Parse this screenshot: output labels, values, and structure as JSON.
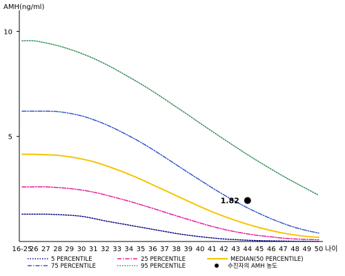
{
  "chart_data": {
    "type": "line",
    "title": "",
    "ylabel": "AMH(ng/ml)",
    "xlabel": "나이",
    "x": [
      16,
      26,
      27,
      28,
      29,
      30,
      31,
      32,
      33,
      34,
      35,
      36,
      37,
      38,
      39,
      40,
      41,
      42,
      43,
      44,
      45,
      46,
      47,
      48,
      49,
      50
    ],
    "x_tick_labels": [
      "16-25",
      "26",
      "27",
      "28",
      "29",
      "30",
      "31",
      "32",
      "33",
      "34",
      "35",
      "36",
      "37",
      "38",
      "39",
      "40",
      "41",
      "42",
      "43",
      "44",
      "45",
      "46",
      "47",
      "48",
      "49",
      "50"
    ],
    "y_ticks": [
      5,
      10
    ],
    "ylim": [
      0,
      11
    ],
    "grid": false,
    "legend_position": "bottom",
    "series": [
      {
        "name": "5 PERCENTILE",
        "color": "#000080",
        "style": "dotted",
        "values": [
          1.3,
          1.3,
          1.3,
          1.28,
          1.25,
          1.2,
          1.1,
          0.98,
          0.88,
          0.78,
          0.68,
          0.58,
          0.48,
          0.38,
          0.3,
          0.23,
          0.17,
          0.12,
          0.09,
          0.06,
          0.04,
          0.03,
          0.02,
          0.01,
          0.01,
          0.0
        ]
      },
      {
        "name": "25 PERCENTILE",
        "color": "#e6199a",
        "style": "dashdot",
        "values": [
          2.6,
          2.6,
          2.6,
          2.57,
          2.52,
          2.45,
          2.35,
          2.22,
          2.07,
          1.92,
          1.75,
          1.58,
          1.4,
          1.22,
          1.05,
          0.88,
          0.72,
          0.58,
          0.46,
          0.36,
          0.28,
          0.22,
          0.16,
          0.12,
          0.1,
          0.08
        ]
      },
      {
        "name": "MEDIAN(50 PERCENTILE)",
        "color": "#f5c400",
        "style": "solid",
        "values": [
          4.15,
          4.15,
          4.13,
          4.1,
          4.03,
          3.93,
          3.8,
          3.62,
          3.42,
          3.2,
          2.96,
          2.7,
          2.44,
          2.18,
          1.92,
          1.66,
          1.42,
          1.2,
          1.0,
          0.82,
          0.66,
          0.52,
          0.4,
          0.31,
          0.24,
          0.2
        ]
      },
      {
        "name": "75 PERCENTILE",
        "color": "#3355cc",
        "style": "dashdot",
        "values": [
          6.2,
          6.2,
          6.2,
          6.18,
          6.1,
          5.98,
          5.8,
          5.58,
          5.32,
          5.03,
          4.72,
          4.38,
          4.02,
          3.65,
          3.28,
          2.92,
          2.56,
          2.22,
          1.9,
          1.6,
          1.33,
          1.08,
          0.86,
          0.67,
          0.52,
          0.4
        ]
      },
      {
        "name": "95 PERCENTILE",
        "color": "#2e8b57",
        "style": "dotted",
        "values": [
          9.55,
          9.55,
          9.45,
          9.32,
          9.15,
          8.95,
          8.72,
          8.45,
          8.15,
          7.83,
          7.5,
          7.15,
          6.78,
          6.4,
          6.02,
          5.63,
          5.25,
          4.87,
          4.5,
          4.13,
          3.78,
          3.44,
          3.11,
          2.8,
          2.5,
          2.2
        ]
      }
    ],
    "annotation": {
      "x": 44,
      "y": 1.95,
      "label": "1.82",
      "legend_label": "수진자의 AMH 농도",
      "color": "#000000"
    }
  }
}
